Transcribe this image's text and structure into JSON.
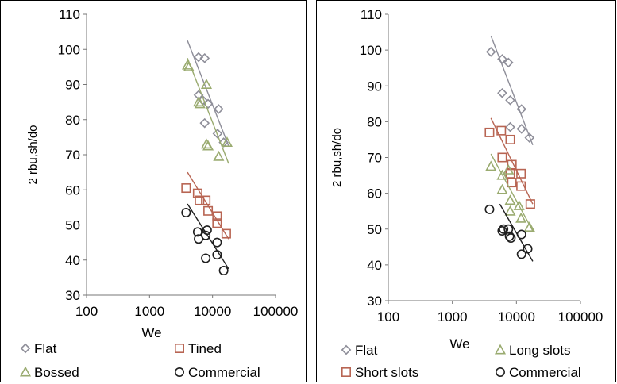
{
  "chart_data": [
    {
      "type": "scatter",
      "xscale": "log",
      "xlim": [
        100,
        100000
      ],
      "ylim": [
        30,
        110
      ],
      "xticks": [
        "100",
        "1000",
        "10000",
        "100000"
      ],
      "yticks": [
        "30",
        "40",
        "50",
        "60",
        "70",
        "80",
        "90",
        "100",
        "110"
      ],
      "xlabel": "We",
      "ylabel": "2 rbu,sh/do",
      "grid": false,
      "legend_position": "bottom",
      "series": [
        {
          "name": "Flat",
          "marker": "diamond",
          "color": "#8e8e99",
          "points": [
            [
              6000,
              97.8
            ],
            [
              7500,
              97.5
            ],
            [
              6000,
              87
            ],
            [
              7000,
              85.5
            ],
            [
              8500,
              84.5
            ],
            [
              12500,
              83
            ],
            [
              7500,
              79
            ],
            [
              12000,
              76
            ],
            [
              15000,
              73.5
            ]
          ],
          "trend": [
            [
              4000,
              102.5
            ],
            [
              18000,
              72.5
            ]
          ]
        },
        {
          "name": "Bossed",
          "marker": "triangle",
          "color": "#9aab70",
          "points": [
            [
              4000,
              95.5
            ],
            [
              4200,
              95
            ],
            [
              8000,
              90
            ],
            [
              6000,
              85
            ],
            [
              6300,
              84.5
            ],
            [
              8000,
              73
            ],
            [
              8500,
              72.5
            ],
            [
              12500,
              69.5
            ],
            [
              17000,
              73.5
            ]
          ],
          "trend": [
            [
              4000,
              97.5
            ],
            [
              18000,
              67.5
            ]
          ]
        },
        {
          "name": "Tined",
          "marker": "square",
          "color": "#b86553",
          "points": [
            [
              3800,
              60.5
            ],
            [
              5800,
              59
            ],
            [
              7800,
              57
            ],
            [
              6200,
              57
            ],
            [
              8500,
              54
            ],
            [
              11800,
              52.5
            ],
            [
              11800,
              50.5
            ],
            [
              16500,
              47.5
            ]
          ],
          "trend": [
            [
              4000,
              65
            ],
            [
              18000,
              46
            ]
          ]
        },
        {
          "name": "Commercial",
          "marker": "circle",
          "color": "#1f1f1f",
          "points": [
            [
              3800,
              53.5
            ],
            [
              5800,
              48
            ],
            [
              8200,
              48.5
            ],
            [
              7800,
              47
            ],
            [
              6000,
              46
            ],
            [
              11800,
              45
            ],
            [
              7800,
              40.5
            ],
            [
              11800,
              41.5
            ],
            [
              15000,
              37
            ]
          ],
          "trend": [
            [
              4000,
              56
            ],
            [
              18000,
              37.5
            ]
          ]
        }
      ]
    },
    {
      "type": "scatter",
      "xscale": "log",
      "xlim": [
        100,
        100000
      ],
      "ylim": [
        30,
        110
      ],
      "xticks": [
        "100",
        "1000",
        "10000",
        "100000"
      ],
      "yticks": [
        "30",
        "40",
        "50",
        "60",
        "70",
        "80",
        "90",
        "100",
        "110"
      ],
      "xlabel": "We",
      "ylabel": "2 rbu,sh/do",
      "grid": false,
      "legend_position": "bottom",
      "series": [
        {
          "name": "Flat",
          "marker": "diamond",
          "color": "#8e8e99",
          "points": [
            [
              4000,
              99.5
            ],
            [
              6000,
              97.5
            ],
            [
              7500,
              96.5
            ],
            [
              6000,
              88
            ],
            [
              8000,
              86
            ],
            [
              12000,
              83.5
            ],
            [
              8000,
              78.5
            ],
            [
              12000,
              78
            ],
            [
              16000,
              75.5
            ]
          ],
          "trend": [
            [
              4000,
              104
            ],
            [
              18000,
              73.5
            ]
          ]
        },
        {
          "name": "Short slots",
          "marker": "square",
          "color": "#b86553",
          "points": [
            [
              3800,
              77
            ],
            [
              5800,
              77.5
            ],
            [
              8000,
              75
            ],
            [
              6000,
              70
            ],
            [
              8500,
              68
            ],
            [
              8000,
              65.5
            ],
            [
              11800,
              65.5
            ],
            [
              8500,
              63
            ],
            [
              11800,
              62
            ],
            [
              16500,
              57
            ]
          ],
          "trend": [
            [
              4000,
              81
            ],
            [
              18000,
              57
            ]
          ]
        },
        {
          "name": "Long slots",
          "marker": "triangle",
          "color": "#9aab70",
          "points": [
            [
              4000,
              67.5
            ],
            [
              6000,
              65
            ],
            [
              7500,
              66.5
            ],
            [
              6000,
              61
            ],
            [
              8000,
              58
            ],
            [
              11000,
              56.5
            ],
            [
              11800,
              53
            ],
            [
              8000,
              55
            ],
            [
              16000,
              50.5
            ]
          ],
          "trend": [
            [
              4000,
              71
            ],
            [
              18000,
              49.5
            ]
          ]
        },
        {
          "name": "Commercial",
          "marker": "circle",
          "color": "#1f1f1f",
          "points": [
            [
              3800,
              55.5
            ],
            [
              6000,
              49.5
            ],
            [
              6300,
              50
            ],
            [
              7500,
              50
            ],
            [
              7800,
              48
            ],
            [
              8200,
              47.5
            ],
            [
              12000,
              48.5
            ],
            [
              12000,
              43
            ],
            [
              15000,
              44.5
            ]
          ],
          "trend": [
            [
              5500,
              57
            ],
            [
              18000,
              41
            ]
          ]
        }
      ]
    }
  ]
}
